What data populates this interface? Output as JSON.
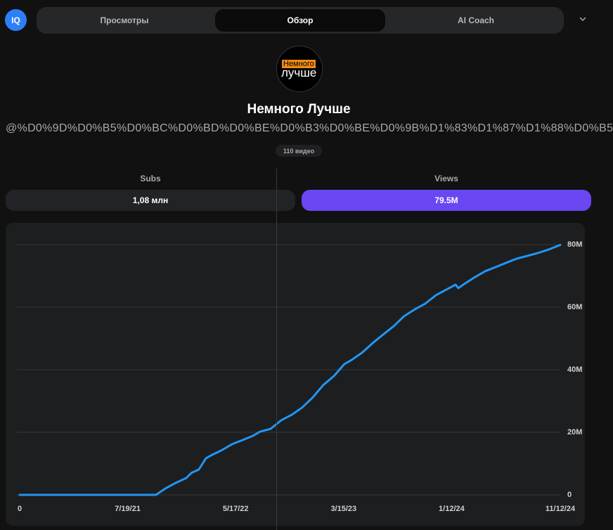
{
  "header": {
    "logo": "IQ",
    "tabs": [
      "Просмотры",
      "Обзор",
      "AI Coach"
    ]
  },
  "channel": {
    "avatar_top": "Немного",
    "avatar_bottom": "лучше",
    "name": "Немного Лучше",
    "handle": "@%D0%9D%D0%B5%D0%BC%D0%BD%D0%BE%D0%B3%D0%BE%D0%9B%D1%83%D1%87%D1%88%D0%B5",
    "video_count": "110 видео"
  },
  "stats": [
    {
      "label": "Subs",
      "value": "1,08 млн"
    },
    {
      "label": "Views",
      "value": "79.5M"
    }
  ],
  "chart_data": {
    "type": "line",
    "x": [
      0,
      381,
      407,
      436,
      466,
      480,
      501,
      511,
      521,
      535,
      564,
      594,
      623,
      653,
      672,
      702,
      731,
      761,
      790,
      820,
      849,
      879,
      908,
      928,
      957,
      987,
      1016,
      1046,
      1075,
      1105,
      1134,
      1164,
      1193,
      1219,
      1227,
      1243,
      1272,
      1302,
      1331,
      1361,
      1390,
      1420,
      1449,
      1479,
      1512
    ],
    "series": [
      {
        "color": "#2196f3",
        "values": [
          0,
          0,
          2.0,
          3.8,
          5.4,
          7.0,
          8.1,
          9.9,
          11.7,
          12.6,
          14.2,
          16.2,
          17.5,
          18.9,
          20.2,
          21.1,
          23.8,
          25.6,
          27.9,
          31.2,
          35.1,
          38.0,
          41.8,
          43.1,
          45.4,
          48.5,
          51.2,
          53.9,
          57.1,
          59.3,
          61.1,
          63.8,
          65.6,
          67.2,
          66.1,
          67.4,
          69.5,
          71.5,
          72.8,
          74.2,
          75.5,
          76.4,
          77.3,
          78.4,
          79.9
        ]
      }
    ],
    "xlim": [
      0,
      1512
    ],
    "xticks": [
      0,
      {
        "value": 302,
        "label": "7/19/21"
      },
      {
        "value": 604,
        "label": "5/17/22"
      },
      {
        "value": 906,
        "label": "3/15/23"
      },
      {
        "value": 1208,
        "label": "1/12/24"
      },
      {
        "value": 1512,
        "label": "11/12/24"
      }
    ],
    "ylim": [
      0,
      80
    ],
    "yticks": [
      0,
      {
        "value": 20,
        "label": "20M"
      },
      {
        "value": 40,
        "label": "40M"
      },
      {
        "value": 60,
        "label": "60M"
      },
      {
        "value": 80,
        "label": "80M"
      }
    ],
    "grid": true
  }
}
